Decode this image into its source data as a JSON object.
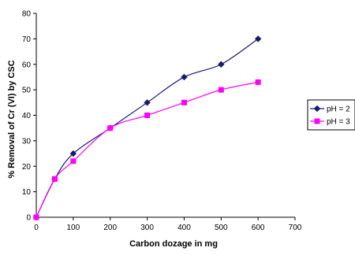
{
  "chart_data": {
    "type": "line",
    "title": "",
    "xlabel": "Carbon dozage in mg",
    "ylabel": "% Removal of Cr (VI) by CSC",
    "xlim": [
      0,
      700
    ],
    "ylim": [
      0,
      80
    ],
    "xticks": [
      0,
      100,
      200,
      300,
      400,
      500,
      600,
      700
    ],
    "yticks": [
      0,
      10,
      20,
      30,
      40,
      50,
      60,
      70,
      80
    ],
    "grid": false,
    "legend_position": "right",
    "series": [
      {
        "name": "pH = 2",
        "color": "#1a1a6e",
        "marker": "diamond",
        "x": [
          0,
          50,
          100,
          200,
          300,
          400,
          500,
          600
        ],
        "y": [
          0,
          15,
          25,
          35,
          45,
          55,
          60,
          70
        ]
      },
      {
        "name": "pH = 3",
        "color": "#ff00ff",
        "marker": "square",
        "x": [
          0,
          50,
          100,
          200,
          300,
          400,
          500,
          600
        ],
        "y": [
          0,
          15,
          22,
          35,
          40,
          45,
          50,
          53
        ]
      }
    ]
  }
}
